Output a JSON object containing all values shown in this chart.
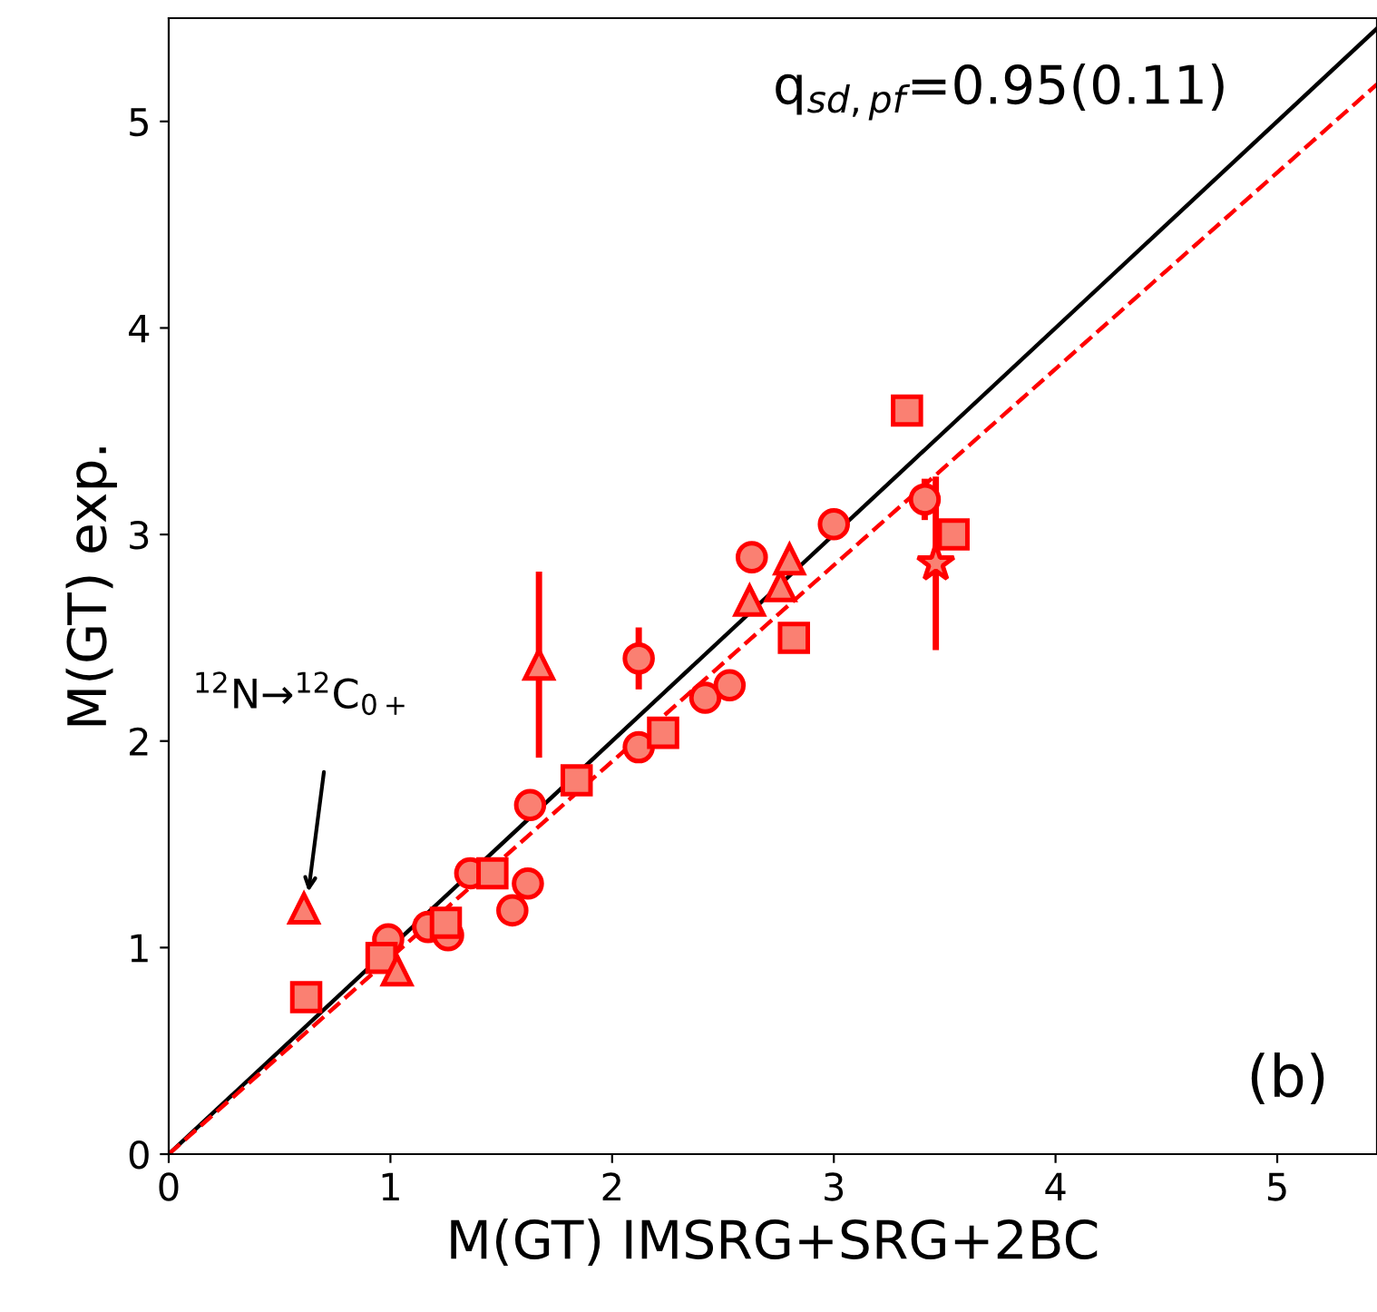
{
  "chart_data": {
    "type": "scatter",
    "xlabel": "M(GT) IMSRG+SRG+2BC",
    "ylabel": "M(GT) exp.",
    "xlim": [
      0,
      5.45
    ],
    "ylim": [
      0,
      5.5
    ],
    "xticks": [
      0,
      1,
      2,
      3,
      4,
      5
    ],
    "yticks": [
      0,
      1,
      2,
      3,
      4,
      5
    ],
    "grid": false,
    "legend": false,
    "series": [
      {
        "type": "line",
        "color": "#000000",
        "line_style": "solid",
        "marker": "none",
        "x": [
          0,
          5.45
        ],
        "values": [
          0,
          5.45
        ]
      },
      {
        "type": "line",
        "color": "#ff0000",
        "line_style": "dashed",
        "marker": "none",
        "x": [
          0,
          5.45
        ],
        "values": [
          0,
          5.18
        ]
      },
      {
        "marker": "circle",
        "color": "#fa8072",
        "x": [
          0.99,
          1.17,
          1.26,
          1.36,
          1.55,
          1.62,
          1.63,
          2.12,
          2.12,
          2.42,
          2.53,
          2.63,
          3.0,
          3.41
        ],
        "values": [
          1.04,
          1.1,
          1.06,
          1.36,
          1.18,
          1.31,
          1.69,
          1.97,
          2.4,
          2.21,
          2.27,
          2.89,
          3.05,
          3.17
        ],
        "errors": [
          null,
          null,
          null,
          null,
          null,
          null,
          null,
          null,
          0.15,
          null,
          null,
          null,
          null,
          0.1
        ]
      },
      {
        "marker": "square",
        "color": "#fa8072",
        "x": [
          0.62,
          0.96,
          1.25,
          1.46,
          1.84,
          2.23,
          2.82,
          3.33,
          3.54
        ],
        "values": [
          0.76,
          0.95,
          1.12,
          1.36,
          1.81,
          2.04,
          2.5,
          3.6,
          3.0
        ]
      },
      {
        "marker": "triangle",
        "color": "#fa8072",
        "x": [
          0.61,
          1.03,
          1.67,
          2.62,
          2.76,
          2.8
        ],
        "values": [
          1.19,
          0.89,
          2.37,
          2.68,
          2.75,
          2.88
        ],
        "errors": [
          null,
          null,
          0.45,
          null,
          null,
          null
        ]
      },
      {
        "marker": "star",
        "color": "#fa8072",
        "x": [
          3.46
        ],
        "values": [
          2.86
        ],
        "errors": [
          0.42
        ]
      }
    ],
    "annotations": [
      "q$_{sd,pf}$=0.95(0.11)",
      "(b)",
      "$^{12}$N→$^{12}$C$_{0+}$"
    ]
  }
}
